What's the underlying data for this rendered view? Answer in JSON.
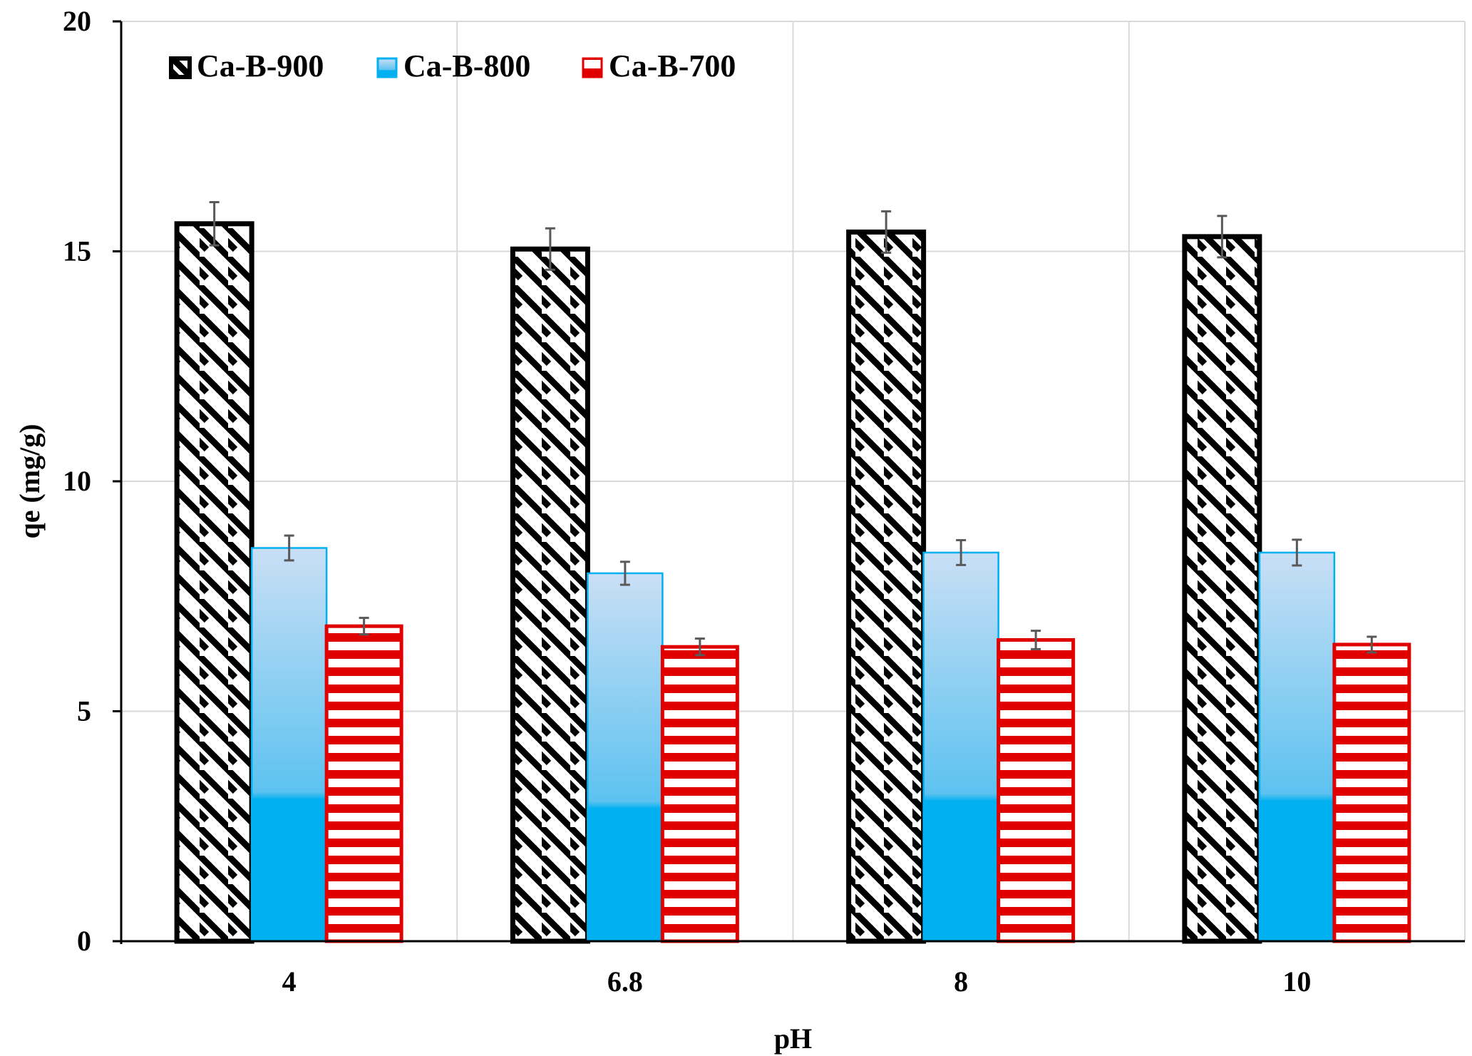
{
  "chart_data": {
    "type": "bar",
    "title": "",
    "xlabel": "pH",
    "ylabel": "qe (mg/g)",
    "categories": [
      "4",
      "6.8",
      "8",
      "10"
    ],
    "ylim": [
      0,
      20
    ],
    "yticks": [
      0,
      5,
      10,
      15,
      20
    ],
    "grid": true,
    "legend_position": "top-left",
    "series": [
      {
        "name": "Ca-B-900",
        "pattern": "diagonal-hatch",
        "color": "#000000",
        "values": [
          15.6,
          15.05,
          15.42,
          15.32
        ],
        "errors": [
          0.47,
          0.45,
          0.45,
          0.45
        ]
      },
      {
        "name": "Ca-B-800",
        "pattern": "gradient",
        "color": "#00B0F0",
        "values": [
          8.55,
          8.0,
          8.45,
          8.45
        ],
        "errors": [
          0.27,
          0.25,
          0.27,
          0.28
        ]
      },
      {
        "name": "Ca-B-700",
        "pattern": "horizontal-stripes",
        "color": "#E00000",
        "values": [
          6.85,
          6.4,
          6.55,
          6.45
        ],
        "errors": [
          0.18,
          0.18,
          0.2,
          0.17
        ]
      }
    ]
  }
}
